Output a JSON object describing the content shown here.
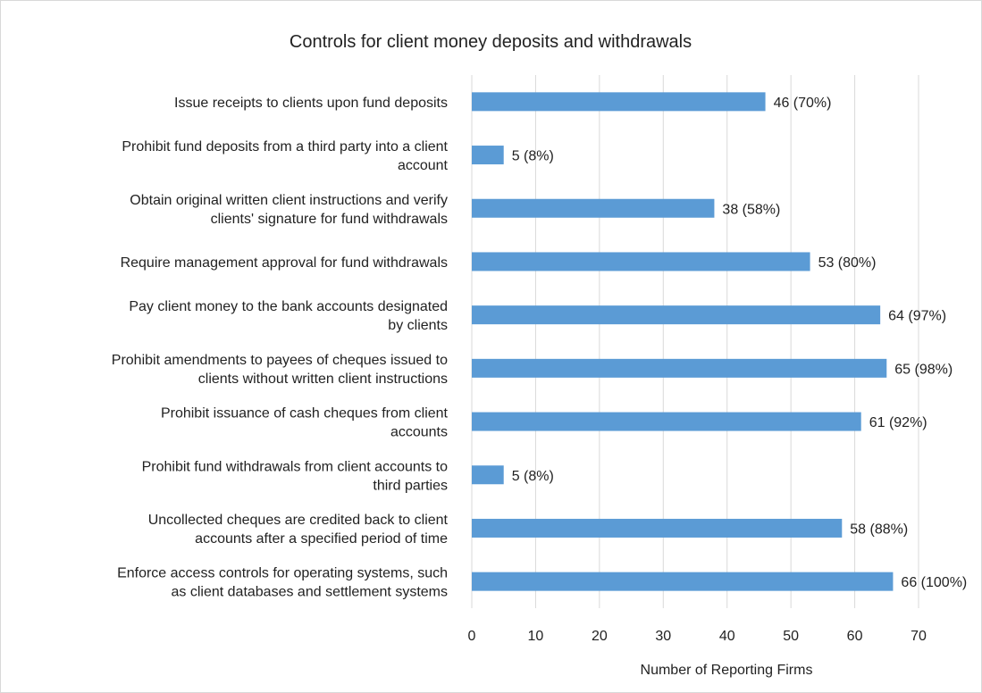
{
  "chart_data": {
    "type": "bar",
    "orientation": "horizontal",
    "title": "Controls for client money deposits and withdrawals",
    "xlabel": "Number of Reporting Firms",
    "ylabel": "",
    "xlim": [
      0,
      70
    ],
    "x_ticks": [
      0,
      10,
      20,
      30,
      40,
      50,
      60,
      70
    ],
    "grid": "vertical",
    "legend": "none",
    "bar_color": "#5b9bd5",
    "categories": [
      [
        "Issue receipts to clients upon fund deposits"
      ],
      [
        "Prohibit fund deposits from a third party into a client",
        "account"
      ],
      [
        "Obtain original written client instructions and verify",
        "clients' signature for fund withdrawals"
      ],
      [
        "Require management approval for fund withdrawals"
      ],
      [
        "Pay client money to the bank accounts designated",
        "by clients"
      ],
      [
        "Prohibit amendments to payees of cheques issued to",
        "clients without written client instructions"
      ],
      [
        "Prohibit issuance of cash cheques from client",
        "accounts"
      ],
      [
        "Prohibit fund withdrawals from client accounts to",
        "third parties"
      ],
      [
        "Uncollected cheques are credited back to client",
        "accounts after a specified period of time"
      ],
      [
        "Enforce access controls for operating systems, such",
        "as client databases and settlement systems"
      ]
    ],
    "values": [
      46,
      5,
      38,
      53,
      64,
      65,
      61,
      5,
      58,
      66
    ],
    "data_labels": [
      "46 (70%)",
      "5 (8%)",
      "38 (58%)",
      "53 (80%)",
      "64 (97%)",
      "65 (98%)",
      "61 (92%)",
      "5 (8%)",
      "58 (88%)",
      "66 (100%)"
    ]
  }
}
